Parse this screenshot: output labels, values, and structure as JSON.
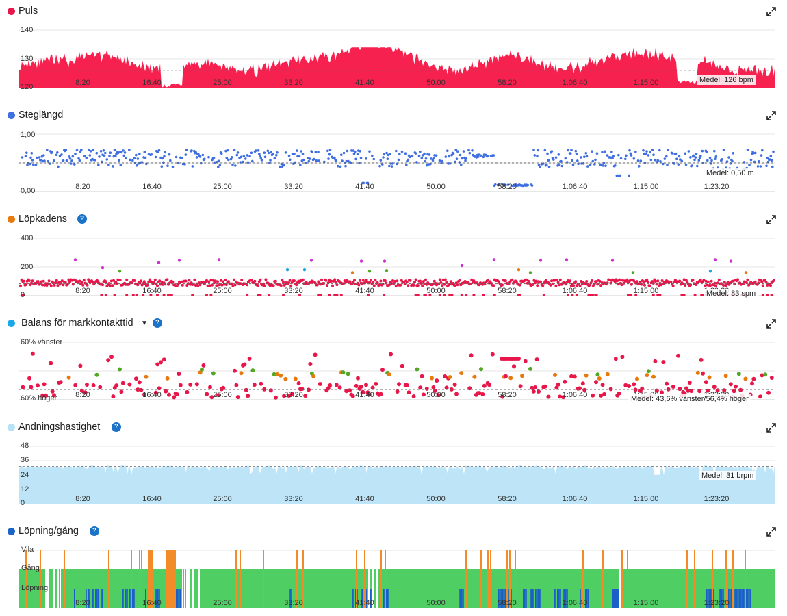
{
  "x_ticks": [
    "8:20",
    "16:40",
    "25:00",
    "33:20",
    "41:40",
    "50:00",
    "58:20",
    "1:06:40",
    "1:15:00",
    "1:23:20"
  ],
  "panels": [
    {
      "key": "puls",
      "title": "Puls",
      "dot_color": "#e8174a",
      "help": false,
      "caret": false,
      "y_ticks": [
        "140",
        "130",
        "120"
      ],
      "avg": "Medel: 126 bpm",
      "chart_data": {
        "type": "area",
        "ylim": [
          120,
          140
        ],
        "mean": 126,
        "color": "#f7214f",
        "duration_s": 5320
      }
    },
    {
      "key": "steg",
      "title": "Steglängd",
      "dot_color": "#3f6fe0",
      "help": false,
      "caret": false,
      "y_ticks": [
        "1,00",
        "0,00"
      ],
      "avg": "Medel: 0,50 m",
      "chart_data": {
        "type": "scatter",
        "ylim": [
          0,
          1
        ],
        "mean": 0.5,
        "color": "#3f6fe0",
        "duration_s": 5320
      }
    },
    {
      "key": "kadens",
      "title": "Löpkadens",
      "dot_color": "#e8790c",
      "help": true,
      "caret": false,
      "y_ticks": [
        "400",
        "200",
        "0"
      ],
      "avg": "Medel: 83 spm",
      "chart_data": {
        "type": "scatter",
        "ylim": [
          0,
          400
        ],
        "mean": 83,
        "colors": [
          "#e8174a",
          "#cc33cc",
          "#e8790c",
          "#52a825",
          "#19a8e8"
        ],
        "duration_s": 5320
      }
    },
    {
      "key": "balans",
      "title": "Balans för markkontakttid",
      "dot_color": "#19a8e8",
      "help": true,
      "caret": true,
      "y_ticks": [
        "60% vänster",
        "60% höger"
      ],
      "avg": "Medel: 43,6% vänster/56,4% höger",
      "chart_data": {
        "type": "scatter",
        "ylim": [
          "60% höger",
          "60% vänster"
        ],
        "mean": "43,6% vänster/56,4% höger",
        "colors": [
          "#e8174a",
          "#e8790c",
          "#52a825"
        ],
        "duration_s": 5320
      }
    },
    {
      "key": "andning",
      "title": "Andningshastighet",
      "dot_color": "#b7e2f6",
      "help": true,
      "caret": false,
      "y_ticks": [
        "48",
        "36",
        "24",
        "12",
        "0"
      ],
      "avg": "Medel: 31 brpm",
      "chart_data": {
        "type": "area",
        "ylim": [
          0,
          48
        ],
        "mean": 31,
        "color": "#bde5f7",
        "duration_s": 5320
      }
    },
    {
      "key": "lopning",
      "title": "Löpning/gång",
      "dot_color": "#1c63c8",
      "help": true,
      "caret": false,
      "y_ticks": [
        "Vila",
        "Gång",
        "Löpning"
      ],
      "avg": "",
      "chart_data": {
        "type": "area",
        "categories": [
          "Vila",
          "Gång",
          "Löpning"
        ],
        "colors": {
          "Vila": "#f28c28",
          "Gång": "#4fce64",
          "Löpning": "#1c5fc8"
        },
        "duration_s": 5320
      }
    }
  ]
}
